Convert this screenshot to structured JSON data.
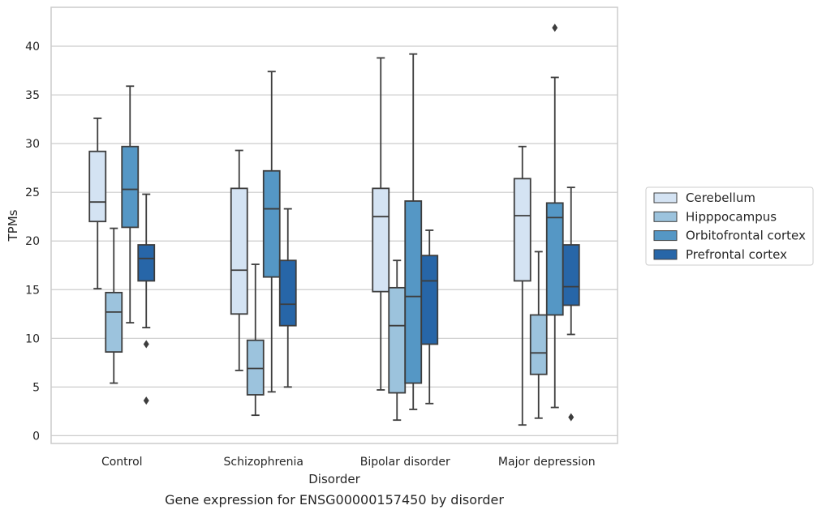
{
  "caption": "Gene expression for ENSG00000157450 by disorder",
  "chart_data": {
    "type": "box",
    "title": "",
    "xlabel": "Disorder",
    "ylabel": "TPMs",
    "ylim": [
      -0.8,
      44
    ],
    "yticks": [
      0,
      5,
      10,
      15,
      20,
      25,
      30,
      35,
      40
    ],
    "grid": "horizontal",
    "legend_position": "right",
    "categories": [
      "Control",
      "Schizophrenia",
      "Bipolar disorder",
      "Major depression"
    ],
    "series": [
      {
        "name": "Cerebellum",
        "color": "#d4e3f3",
        "boxes": [
          {
            "whislo": 15.1,
            "q1": 22.0,
            "med": 24.0,
            "q3": 29.2,
            "whishi": 32.6,
            "fliers": []
          },
          {
            "whislo": 6.7,
            "q1": 12.5,
            "med": 17.0,
            "q3": 25.4,
            "whishi": 29.3,
            "fliers": []
          },
          {
            "whislo": 4.7,
            "q1": 14.8,
            "med": 22.5,
            "q3": 25.4,
            "whishi": 38.8,
            "fliers": []
          },
          {
            "whislo": 1.1,
            "q1": 15.9,
            "med": 22.6,
            "q3": 26.4,
            "whishi": 29.7,
            "fliers": []
          }
        ]
      },
      {
        "name": "Hipppocampus",
        "color": "#9cc3dd",
        "boxes": [
          {
            "whislo": 5.4,
            "q1": 8.6,
            "med": 12.7,
            "q3": 14.7,
            "whishi": 21.3,
            "fliers": []
          },
          {
            "whislo": 2.1,
            "q1": 4.2,
            "med": 6.9,
            "q3": 9.8,
            "whishi": 17.6,
            "fliers": []
          },
          {
            "whislo": 1.6,
            "q1": 4.4,
            "med": 11.3,
            "q3": 15.2,
            "whishi": 18.0,
            "fliers": []
          },
          {
            "whislo": 1.8,
            "q1": 6.3,
            "med": 8.5,
            "q3": 12.4,
            "whishi": 18.9,
            "fliers": []
          }
        ]
      },
      {
        "name": "Orbitofrontal cortex",
        "color": "#5597c5",
        "boxes": [
          {
            "whislo": 11.6,
            "q1": 21.4,
            "med": 25.3,
            "q3": 29.7,
            "whishi": 35.9,
            "fliers": []
          },
          {
            "whislo": 4.5,
            "q1": 16.3,
            "med": 23.3,
            "q3": 27.2,
            "whishi": 37.4,
            "fliers": []
          },
          {
            "whislo": 2.7,
            "q1": 5.4,
            "med": 14.3,
            "q3": 24.1,
            "whishi": 39.2,
            "fliers": []
          },
          {
            "whislo": 2.9,
            "q1": 12.4,
            "med": 22.4,
            "q3": 23.9,
            "whishi": 36.8,
            "fliers": [
              41.9
            ]
          }
        ]
      },
      {
        "name": "Prefrontal cortex",
        "color": "#2766a8",
        "boxes": [
          {
            "whislo": 11.1,
            "q1": 15.9,
            "med": 18.2,
            "q3": 19.6,
            "whishi": 24.8,
            "fliers": [
              9.4,
              3.6
            ]
          },
          {
            "whislo": 5.0,
            "q1": 11.3,
            "med": 13.5,
            "q3": 18.0,
            "whishi": 23.3,
            "fliers": []
          },
          {
            "whislo": 3.3,
            "q1": 9.4,
            "med": 15.9,
            "q3": 18.5,
            "whishi": 21.1,
            "fliers": []
          },
          {
            "whislo": 10.4,
            "q1": 13.4,
            "med": 15.3,
            "q3": 19.6,
            "whishi": 25.5,
            "fliers": [
              1.9
            ]
          }
        ]
      }
    ]
  }
}
